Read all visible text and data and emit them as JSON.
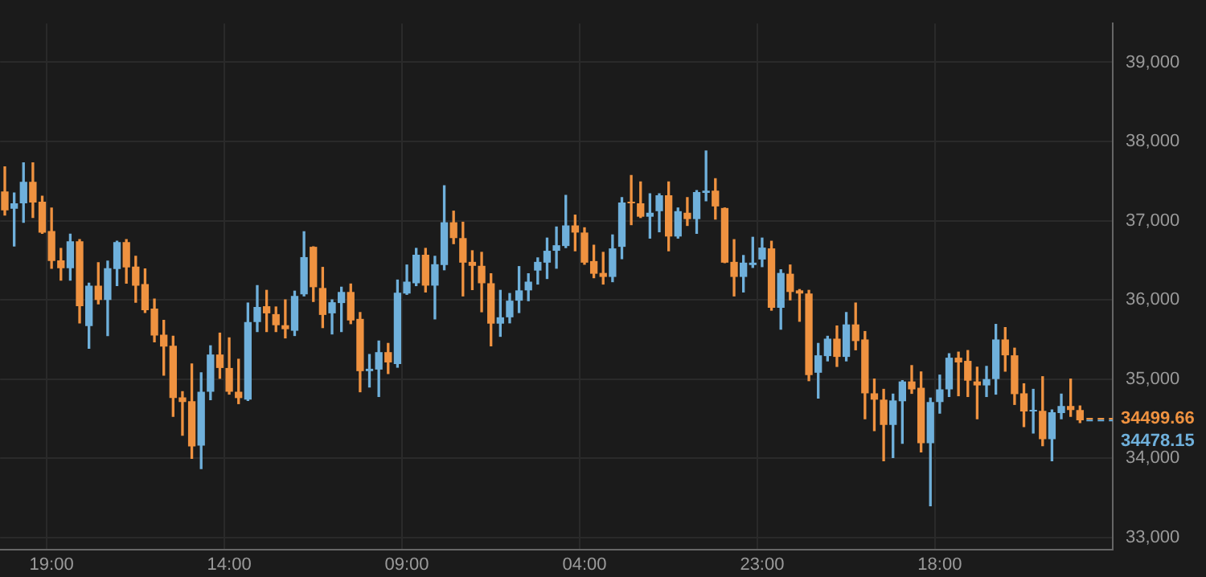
{
  "chart_data": {
    "type": "candlestick",
    "categories": [
      null,
      null,
      null,
      null,
      null,
      "19:00",
      null,
      null,
      null,
      null,
      null,
      null,
      null,
      null,
      null,
      null,
      null,
      null,
      null,
      null,
      null,
      null,
      null,
      null,
      "14:00",
      null,
      null,
      null,
      null,
      null,
      null,
      null,
      null,
      null,
      null,
      null,
      null,
      null,
      null,
      null,
      null,
      null,
      null,
      "09:00",
      null,
      null,
      null,
      null,
      null,
      null,
      null,
      null,
      null,
      null,
      null,
      null,
      null,
      null,
      null,
      null,
      null,
      null,
      "04:00",
      null,
      null,
      null,
      null,
      null,
      null,
      null,
      null,
      null,
      null,
      null,
      null,
      null,
      null,
      null,
      null,
      null,
      null,
      "23:00",
      null,
      null,
      null,
      null,
      null,
      null,
      null,
      null,
      null,
      null,
      null,
      null,
      null,
      null,
      null,
      null,
      null,
      null,
      "18:00",
      null,
      null,
      null,
      null,
      null,
      null,
      null,
      null,
      null,
      null,
      null,
      null,
      null,
      null,
      null,
      null,
      null,
      null
    ],
    "ohlc": [
      [
        37370,
        37680,
        37070,
        37130
      ],
      [
        37150,
        37350,
        36680,
        37220
      ],
      [
        37220,
        37730,
        36980,
        37490
      ],
      [
        37490,
        37730,
        37040,
        37230
      ],
      [
        37240,
        37310,
        36840,
        36850
      ],
      [
        36870,
        37160,
        36400,
        36490
      ],
      [
        36500,
        36650,
        36250,
        36400
      ],
      [
        36400,
        36830,
        36250,
        36740
      ],
      [
        36740,
        36760,
        35710,
        35920
      ],
      [
        35670,
        36210,
        35390,
        36180
      ],
      [
        36180,
        36470,
        35950,
        36000
      ],
      [
        36000,
        36490,
        35550,
        36400
      ],
      [
        36390,
        36740,
        36180,
        36730
      ],
      [
        36730,
        36760,
        36210,
        36410
      ],
      [
        36420,
        36550,
        35970,
        36180
      ],
      [
        36200,
        36390,
        35840,
        35870
      ],
      [
        35890,
        36010,
        35470,
        35550
      ],
      [
        35560,
        35740,
        35050,
        35410
      ],
      [
        35420,
        35540,
        34530,
        34760
      ],
      [
        34770,
        34840,
        34290,
        34710
      ],
      [
        34720,
        35190,
        34000,
        34150
      ],
      [
        34160,
        35080,
        33870,
        34840
      ],
      [
        34840,
        35420,
        34740,
        35310
      ],
      [
        35310,
        35580,
        35010,
        35140
      ],
      [
        35140,
        35520,
        34810,
        34840
      ],
      [
        34840,
        35250,
        34690,
        34760
      ],
      [
        34740,
        35960,
        34730,
        35720
      ],
      [
        35720,
        36180,
        35600,
        35910
      ],
      [
        35920,
        36120,
        35600,
        35830
      ],
      [
        35820,
        35910,
        35600,
        35680
      ],
      [
        35680,
        36000,
        35520,
        35630
      ],
      [
        35610,
        36110,
        35550,
        36050
      ],
      [
        36070,
        36860,
        36050,
        36540
      ],
      [
        36670,
        36670,
        35980,
        36160
      ],
      [
        36150,
        36410,
        35650,
        35810
      ],
      [
        35830,
        36000,
        35570,
        35970
      ],
      [
        35960,
        36160,
        35600,
        36100
      ],
      [
        36100,
        36200,
        35700,
        35740
      ],
      [
        35760,
        35840,
        34840,
        35100
      ],
      [
        35100,
        35310,
        34900,
        35130
      ],
      [
        35120,
        35480,
        34780,
        35340
      ],
      [
        35340,
        35450,
        35070,
        35210
      ],
      [
        35190,
        36250,
        35150,
        36090
      ],
      [
        36080,
        36440,
        36070,
        36230
      ],
      [
        36210,
        36650,
        36180,
        36570
      ],
      [
        36570,
        36650,
        36100,
        36180
      ],
      [
        36180,
        36550,
        35760,
        36450
      ],
      [
        36440,
        37440,
        36380,
        36980
      ],
      [
        36980,
        37120,
        36710,
        36780
      ],
      [
        36780,
        36980,
        36050,
        36470
      ],
      [
        36480,
        36620,
        36130,
        36430
      ],
      [
        36430,
        36600,
        35850,
        36210
      ],
      [
        36210,
        36330,
        35420,
        35700
      ],
      [
        35700,
        36120,
        35540,
        35780
      ],
      [
        35780,
        36080,
        35710,
        35990
      ],
      [
        35990,
        36420,
        35840,
        36120
      ],
      [
        36120,
        36330,
        35990,
        36230
      ],
      [
        36370,
        36530,
        36200,
        36480
      ],
      [
        36470,
        36780,
        36270,
        36620
      ],
      [
        36620,
        36920,
        36400,
        36690
      ],
      [
        36680,
        37320,
        36660,
        36940
      ],
      [
        36940,
        37070,
        36620,
        36850
      ],
      [
        36850,
        36910,
        36450,
        36470
      ],
      [
        36490,
        36690,
        36280,
        36330
      ],
      [
        36340,
        36600,
        36200,
        36290
      ],
      [
        36290,
        36820,
        36230,
        36650
      ],
      [
        36670,
        37290,
        36520,
        37230
      ],
      [
        37240,
        37570,
        36950,
        37220
      ],
      [
        37220,
        37490,
        37040,
        37050
      ],
      [
        37050,
        37340,
        36780,
        37100
      ],
      [
        37120,
        37340,
        36860,
        37320
      ],
      [
        37320,
        37490,
        36620,
        36800
      ],
      [
        36800,
        37160,
        36780,
        37120
      ],
      [
        37100,
        37290,
        36940,
        37020
      ],
      [
        37020,
        37380,
        36840,
        37360
      ],
      [
        37350,
        37880,
        37250,
        37380
      ],
      [
        37380,
        37530,
        37020,
        37180
      ],
      [
        37160,
        37160,
        36470,
        36470
      ],
      [
        36480,
        36760,
        36050,
        36290
      ],
      [
        36290,
        36560,
        36100,
        36470
      ],
      [
        36440,
        36790,
        36410,
        36470
      ],
      [
        36510,
        36780,
        36420,
        36660
      ],
      [
        36650,
        36740,
        35870,
        35900
      ],
      [
        35900,
        36380,
        35630,
        36340
      ],
      [
        36330,
        36440,
        36000,
        36100
      ],
      [
        36120,
        36130,
        35730,
        36080
      ],
      [
        36080,
        36120,
        34980,
        35050
      ],
      [
        35080,
        35450,
        34760,
        35300
      ],
      [
        35290,
        35540,
        35230,
        35510
      ],
      [
        35510,
        35670,
        35160,
        35280
      ],
      [
        35280,
        35840,
        35230,
        35690
      ],
      [
        35690,
        35960,
        35370,
        35480
      ],
      [
        35500,
        35600,
        34500,
        34820
      ],
      [
        34820,
        35000,
        34350,
        34740
      ],
      [
        34740,
        34870,
        33970,
        34420
      ],
      [
        34420,
        34810,
        34010,
        34730
      ],
      [
        34720,
        34980,
        34190,
        34970
      ],
      [
        34970,
        35170,
        34820,
        34870
      ],
      [
        34890,
        35090,
        34080,
        34190
      ],
      [
        34190,
        34760,
        33400,
        34710
      ],
      [
        34710,
        35050,
        34570,
        34870
      ],
      [
        34870,
        35320,
        34780,
        35270
      ],
      [
        35270,
        35340,
        34790,
        35210
      ],
      [
        35230,
        35360,
        34780,
        34980
      ],
      [
        34970,
        35150,
        34500,
        34920
      ],
      [
        34920,
        35160,
        34780,
        35000
      ],
      [
        35000,
        35690,
        34810,
        35500
      ],
      [
        35500,
        35650,
        35100,
        35300
      ],
      [
        35300,
        35390,
        34680,
        34810
      ],
      [
        34820,
        34940,
        34400,
        34590
      ],
      [
        34590,
        34870,
        34320,
        34610
      ],
      [
        34600,
        35030,
        34160,
        34240
      ],
      [
        34240,
        34610,
        33970,
        34580
      ],
      [
        34570,
        34810,
        34500,
        34660
      ],
      [
        34660,
        35000,
        34530,
        34610
      ],
      [
        34610,
        34660,
        34450,
        34480
      ],
      null,
      null,
      null
    ],
    "colors": [
      "#ef9240",
      "#6fb0db",
      "#6fb0db",
      "#ef9240",
      "#ef9240",
      "#ef9240",
      "#ef9240",
      "#6fb0db",
      "#ef9240",
      "#6fb0db",
      "#ef9240",
      "#6fb0db",
      "#6fb0db",
      "#ef9240",
      "#ef9240",
      "#ef9240",
      "#ef9240",
      "#ef9240",
      "#ef9240",
      "#ef9240",
      "#ef9240",
      "#6fb0db",
      "#6fb0db",
      "#ef9240",
      "#ef9240",
      "#ef9240",
      "#6fb0db",
      "#6fb0db",
      "#ef9240",
      "#ef9240",
      "#ef9240",
      "#6fb0db",
      "#6fb0db",
      "#ef9240",
      "#ef9240",
      "#6fb0db",
      "#6fb0db",
      "#ef9240",
      "#ef9240",
      "#6fb0db",
      "#6fb0db",
      "#ef9240",
      "#6fb0db",
      "#6fb0db",
      "#6fb0db",
      "#ef9240",
      "#6fb0db",
      "#6fb0db",
      "#ef9240",
      "#ef9240",
      "#ef9240",
      "#ef9240",
      "#ef9240",
      "#6fb0db",
      "#6fb0db",
      "#6fb0db",
      "#6fb0db",
      "#6fb0db",
      "#6fb0db",
      "#6fb0db",
      "#6fb0db",
      "#ef9240",
      "#ef9240",
      "#ef9240",
      "#ef9240",
      "#6fb0db",
      "#6fb0db",
      "#ef9240",
      "#ef9240",
      "#6fb0db",
      "#6fb0db",
      "#ef9240",
      "#6fb0db",
      "#ef9240",
      "#6fb0db",
      "#6fb0db",
      "#ef9240",
      "#ef9240",
      "#ef9240",
      "#6fb0db",
      "#6fb0db",
      "#6fb0db",
      "#ef9240",
      "#6fb0db",
      "#ef9240",
      "#ef9240",
      "#ef9240",
      "#6fb0db",
      "#6fb0db",
      "#ef9240",
      "#6fb0db",
      "#ef9240",
      "#ef9240",
      "#ef9240",
      "#ef9240",
      "#6fb0db",
      "#6fb0db",
      "#ef9240",
      "#ef9240",
      "#6fb0db",
      "#6fb0db",
      "#6fb0db",
      "#ef9240",
      "#ef9240",
      "#ef9240",
      "#6fb0db",
      "#6fb0db",
      "#ef9240",
      "#ef9240",
      "#ef9240",
      "#6fb0db",
      "#ef9240",
      "#6fb0db",
      "#6fb0db",
      "#ef9240",
      "#ef9240",
      null,
      null,
      null
    ],
    "ylim": [
      32850,
      39490
    ],
    "yticks": [
      {
        "value": 33000,
        "label": "33,000"
      },
      {
        "value": 34000,
        "label": "34,000"
      },
      {
        "value": 35000,
        "label": "35,000"
      },
      {
        "value": 36000,
        "label": "36,000"
      },
      {
        "value": 37000,
        "label": "37,000"
      },
      {
        "value": 38000,
        "label": "38,000"
      },
      {
        "value": 39000,
        "label": "39,000"
      }
    ],
    "grid": true,
    "legend": false,
    "ref_lines": [
      {
        "axis": "y",
        "value": 34499.66,
        "label": "34499.66",
        "color": "#ef9240",
        "line_style": "dashed"
      },
      {
        "axis": "y",
        "value": 34478.15,
        "label": "34478.15",
        "color": "#6fb0db",
        "line_style": "dashed"
      }
    ]
  }
}
